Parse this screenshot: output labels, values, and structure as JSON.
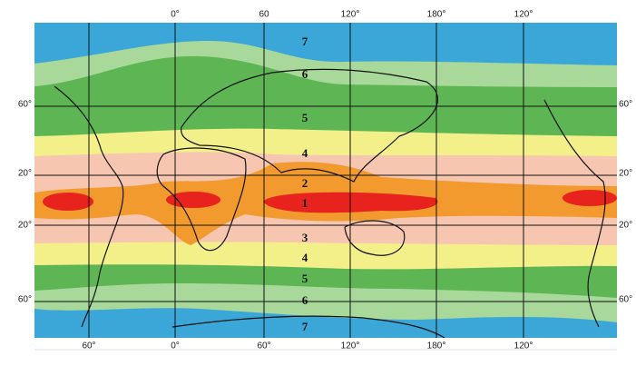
{
  "map": {
    "top_labels": [
      "0°",
      "60",
      "120°",
      "180°",
      "120°"
    ],
    "bottom_labels": [
      "60°",
      "0°",
      "60°",
      "120°",
      "180°",
      "120°"
    ],
    "left_labels": [
      "60°",
      "20°",
      "20°",
      "60°"
    ],
    "right_labels": [
      "60°",
      "20°",
      "20°",
      "60°"
    ],
    "zones": [
      "7",
      "6",
      "5",
      "4",
      "2",
      "1",
      "3",
      "4",
      "5",
      "6",
      "7"
    ]
  }
}
